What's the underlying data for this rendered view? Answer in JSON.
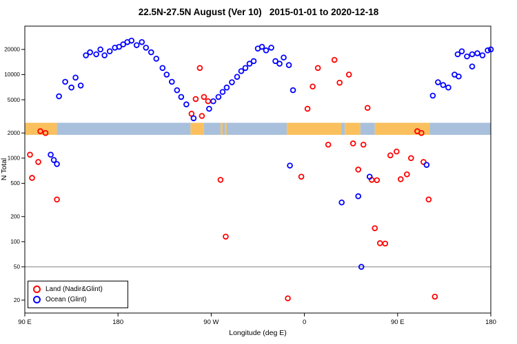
{
  "title": "22.5N-27.5N August (Ver 10)   2015-01-01 to 2020-12-18",
  "chart_data": {
    "type": "scatter",
    "title": "22.5N-27.5N August (Ver 10)   2015-01-01 to 2020-12-18",
    "xlabel": "Longitude (deg E)",
    "ylabel": "N Total",
    "x_range": [
      90,
      540
    ],
    "y_range": [
      14,
      38000
    ],
    "y_scale": "log",
    "grid": "off",
    "x_ticks": [
      {
        "label": "90 E",
        "lon": 90
      },
      {
        "label": "180",
        "lon": 180
      },
      {
        "label": "90 W",
        "lon": 270
      },
      {
        "label": "0",
        "lon": 360
      },
      {
        "label": "90 E",
        "lon": 450
      },
      {
        "label": "180",
        "lon": 540
      }
    ],
    "y_ticks": [
      {
        "value": 20,
        "label": "20"
      },
      {
        "value": 50,
        "label": "50"
      },
      {
        "value": 100,
        "label": "100"
      },
      {
        "value": 200,
        "label": "200"
      },
      {
        "value": 500,
        "label": "500"
      },
      {
        "value": 1000,
        "label": "1000"
      },
      {
        "value": 2000,
        "label": "2000"
      },
      {
        "value": 5000,
        "label": "5000"
      },
      {
        "value": 10000,
        "label": "10000"
      },
      {
        "value": 20000,
        "label": "20000"
      }
    ],
    "reference_line": {
      "y": 50,
      "color": "#555555"
    },
    "land_ocean_band": {
      "y_min": 1900,
      "y_max": 2650,
      "land_color": "#FAC05E",
      "ocean_color": "#A8C0DC",
      "segments": [
        {
          "start": 90,
          "end": 121,
          "type": "land"
        },
        {
          "start": 121,
          "end": 250,
          "type": "ocean"
        },
        {
          "start": 250,
          "end": 263,
          "type": "land"
        },
        {
          "start": 263,
          "end": 279,
          "type": "ocean"
        },
        {
          "start": 279,
          "end": 281,
          "type": "land"
        },
        {
          "start": 281,
          "end": 283.5,
          "type": "ocean"
        },
        {
          "start": 283.5,
          "end": 285,
          "type": "land"
        },
        {
          "start": 285,
          "end": 343,
          "type": "ocean"
        },
        {
          "start": 343,
          "end": 395.5,
          "type": "land"
        },
        {
          "start": 395.5,
          "end": 399,
          "type": "ocean"
        },
        {
          "start": 399,
          "end": 414,
          "type": "land"
        },
        {
          "start": 414,
          "end": 428,
          "type": "ocean"
        },
        {
          "start": 428,
          "end": 481,
          "type": "land"
        },
        {
          "start": 481,
          "end": 540,
          "type": "ocean"
        }
      ]
    },
    "series": [
      {
        "name": "Land (Nadir&Glint)",
        "color": "#FF0000",
        "points": [
          [
            95,
            1100
          ],
          [
            103,
            900
          ],
          [
            97,
            580
          ],
          [
            105,
            2100
          ],
          [
            110,
            2000
          ],
          [
            121,
            320
          ],
          [
            131,
            23
          ],
          [
            251,
            3400
          ],
          [
            255,
            5100
          ],
          [
            259,
            12000
          ],
          [
            261,
            3200
          ],
          [
            263,
            5400
          ],
          [
            267,
            4800
          ],
          [
            279,
            550
          ],
          [
            284,
            115
          ],
          [
            344,
            21
          ],
          [
            357,
            600
          ],
          [
            363,
            3900
          ],
          [
            368,
            7200
          ],
          [
            373,
            12000
          ],
          [
            383,
            1450
          ],
          [
            389,
            15000
          ],
          [
            394,
            8000
          ],
          [
            403,
            10000
          ],
          [
            407,
            1500
          ],
          [
            412,
            730
          ],
          [
            417,
            1450
          ],
          [
            421,
            4000
          ],
          [
            425,
            550
          ],
          [
            428,
            145
          ],
          [
            430,
            545
          ],
          [
            433,
            96
          ],
          [
            438,
            95
          ],
          [
            443,
            1080
          ],
          [
            449,
            1200
          ],
          [
            453,
            560
          ],
          [
            459,
            640
          ],
          [
            463,
            1000
          ],
          [
            469,
            2100
          ],
          [
            473,
            2000
          ],
          [
            475,
            900
          ],
          [
            480,
            320
          ],
          [
            486,
            22
          ]
        ]
      },
      {
        "name": "Ocean (Glint)",
        "color": "#0000FF",
        "points": [
          [
            115,
            1100
          ],
          [
            118,
            950
          ],
          [
            121,
            850
          ],
          [
            123,
            5500
          ],
          [
            129,
            8200
          ],
          [
            135,
            7000
          ],
          [
            139,
            9200
          ],
          [
            144,
            7400
          ],
          [
            149,
            17000
          ],
          [
            153,
            18500
          ],
          [
            159,
            17500
          ],
          [
            163,
            20000
          ],
          [
            167,
            17000
          ],
          [
            172,
            19000
          ],
          [
            177,
            21000
          ],
          [
            181,
            21500
          ],
          [
            185,
            23000
          ],
          [
            189,
            24500
          ],
          [
            193,
            25500
          ],
          [
            198,
            22500
          ],
          [
            203,
            24500
          ],
          [
            207,
            21000
          ],
          [
            212,
            18500
          ],
          [
            217,
            15500
          ],
          [
            223,
            12000
          ],
          [
            227,
            10000
          ],
          [
            232,
            8200
          ],
          [
            237,
            6500
          ],
          [
            241,
            5400
          ],
          [
            246,
            4400
          ],
          [
            253,
            3000
          ],
          [
            268,
            3900
          ],
          [
            272,
            4800
          ],
          [
            277,
            5400
          ],
          [
            281,
            6200
          ],
          [
            285,
            7000
          ],
          [
            290,
            8100
          ],
          [
            295,
            9400
          ],
          [
            299,
            11000
          ],
          [
            303,
            12000
          ],
          [
            307,
            13500
          ],
          [
            311,
            14500
          ],
          [
            315,
            20500
          ],
          [
            319,
            21500
          ],
          [
            323,
            19500
          ],
          [
            328,
            21000
          ],
          [
            332,
            14500
          ],
          [
            336,
            13500
          ],
          [
            340,
            16000
          ],
          [
            345,
            13000
          ],
          [
            349,
            6500
          ],
          [
            346,
            815
          ],
          [
            396,
            295
          ],
          [
            412,
            350
          ],
          [
            415,
            50
          ],
          [
            423,
            600
          ],
          [
            478,
            830
          ],
          [
            484,
            5600
          ],
          [
            489,
            8100
          ],
          [
            494,
            7500
          ],
          [
            499,
            7000
          ],
          [
            505,
            10000
          ],
          [
            509,
            9500
          ],
          [
            522,
            12500
          ],
          [
            508,
            17500
          ],
          [
            512,
            19000
          ],
          [
            517,
            16500
          ],
          [
            522,
            17500
          ],
          [
            527,
            18000
          ],
          [
            532,
            17000
          ],
          [
            537,
            19500
          ],
          [
            540,
            20000
          ]
        ]
      }
    ],
    "legend": {
      "position": "bottom-left"
    }
  }
}
